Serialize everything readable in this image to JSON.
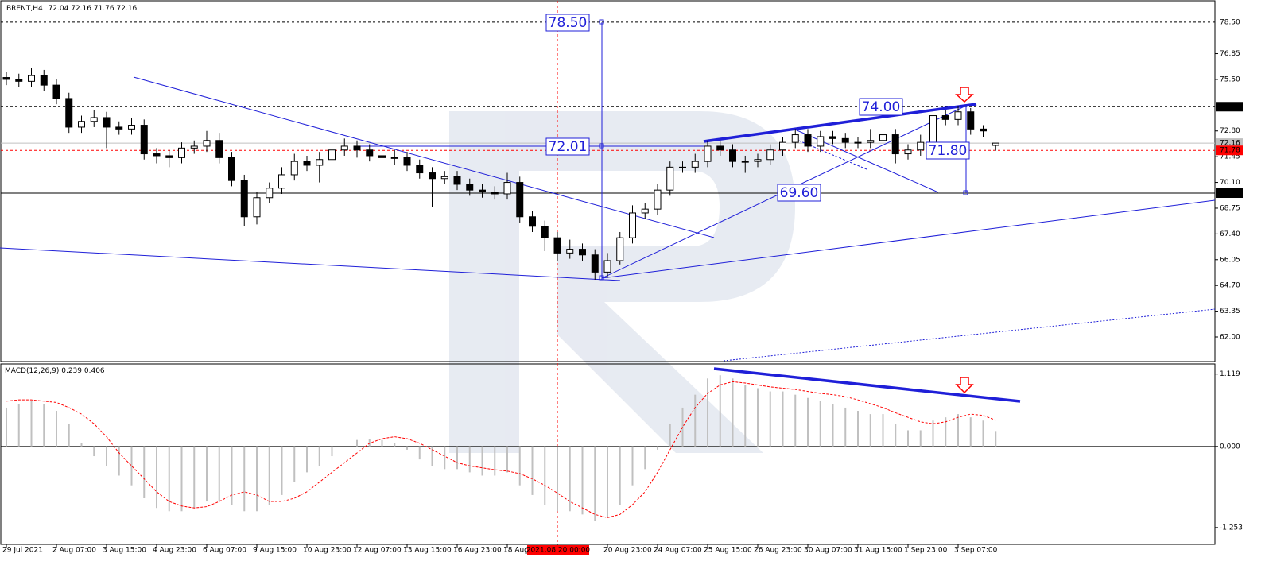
{
  "chart_data": [
    {
      "type": "candlestick",
      "title": "BRENT,H4",
      "categories": [
        "29 Jul 2021",
        null,
        null,
        null,
        "2 Aug 07:00",
        null,
        null,
        null,
        "3 Aug 15:00",
        null,
        null,
        null,
        "4 Aug 23:00",
        null,
        null,
        null,
        "6 Aug 07:00",
        null,
        null,
        null,
        "9 Aug 15:00",
        null,
        null,
        null,
        "10 Aug 23:00",
        null,
        null,
        null,
        "12 Aug 07:00",
        null,
        null,
        null,
        "13 Aug 15:00",
        null,
        null,
        null,
        "16 Aug 23:00",
        null,
        null,
        null,
        "18 Aug 07:00",
        null,
        null,
        null,
        "2021.08.20 00:00",
        null,
        null,
        null,
        "20 Aug 23:00",
        null,
        null,
        null,
        "24 Aug 07:00",
        null,
        null,
        null,
        "25 Aug 15:00",
        null,
        null,
        null,
        "26 Aug 23:00",
        null,
        null,
        null,
        "30 Aug 07:00",
        null,
        null,
        null,
        "31 Aug 15:00",
        null,
        null,
        null,
        "1 Sep 23:00",
        null,
        null,
        null,
        "3 Sep 07:00",
        null,
        null,
        null
      ],
      "open": [
        75.6,
        75.5,
        75.4,
        75.7,
        75.2,
        74.5,
        73.0,
        73.3,
        73.5,
        73.0,
        72.9,
        73.1,
        71.6,
        71.5,
        71.4,
        71.9,
        72.0,
        72.3,
        71.4,
        70.2,
        68.3,
        69.3,
        69.8,
        70.5,
        71.2,
        71.0,
        71.3,
        71.8,
        72.0,
        71.8,
        71.5,
        71.4,
        71.4,
        71.0,
        70.6,
        70.3,
        70.4,
        70.0,
        69.7,
        69.6,
        69.5,
        70.1,
        68.3,
        67.8,
        67.2,
        66.4,
        66.6,
        66.3,
        65.4,
        66.0,
        67.2,
        68.5,
        68.7,
        69.7,
        70.9,
        70.9,
        71.2,
        72.0,
        71.8,
        71.2,
        71.2,
        71.3,
        71.8,
        72.2,
        72.6,
        72.0,
        72.5,
        72.4,
        72.2,
        72.2,
        72.3,
        72.6,
        71.6,
        71.8,
        72.2,
        73.6,
        73.4,
        73.8,
        72.9,
        72.04
      ],
      "high": [
        75.9,
        75.8,
        76.1,
        76.0,
        75.5,
        74.8,
        73.6,
        73.9,
        73.8,
        73.3,
        73.5,
        73.4,
        71.9,
        71.8,
        72.2,
        72.3,
        72.8,
        72.7,
        71.7,
        70.5,
        69.6,
        70.1,
        70.9,
        71.6,
        71.5,
        71.7,
        72.2,
        72.4,
        72.3,
        72.1,
        71.8,
        71.8,
        71.7,
        71.3,
        70.9,
        70.7,
        70.7,
        70.3,
        70.0,
        69.9,
        70.6,
        70.4,
        68.6,
        68.1,
        67.5,
        67.1,
        66.9,
        66.6,
        66.4,
        67.5,
        68.9,
        69.0,
        70.0,
        71.2,
        71.2,
        71.6,
        72.3,
        72.3,
        72.1,
        71.5,
        71.6,
        72.1,
        72.5,
        72.9,
        72.9,
        72.8,
        72.8,
        72.7,
        72.5,
        72.9,
        72.9,
        72.9,
        72.1,
        72.6,
        73.9,
        73.9,
        74.1,
        74.0,
        73.1,
        72.16
      ],
      "low": [
        75.2,
        75.1,
        75.1,
        74.9,
        74.2,
        72.7,
        72.7,
        73.0,
        71.9,
        72.6,
        72.6,
        71.3,
        71.1,
        70.9,
        71.1,
        71.6,
        71.7,
        71.1,
        69.9,
        67.8,
        67.9,
        69.0,
        69.5,
        70.2,
        70.7,
        70.1,
        71.0,
        71.5,
        71.4,
        71.2,
        71.1,
        71.0,
        70.7,
        70.3,
        68.8,
        70.0,
        69.7,
        69.4,
        69.3,
        69.2,
        69.2,
        68.0,
        67.5,
        66.5,
        66.0,
        66.1,
        66.0,
        65.0,
        65.1,
        65.8,
        66.9,
        68.2,
        68.4,
        69.4,
        70.6,
        70.6,
        70.9,
        71.5,
        70.9,
        70.6,
        70.9,
        71.0,
        71.5,
        71.9,
        71.7,
        71.7,
        72.1,
        71.9,
        71.9,
        71.9,
        72.0,
        71.1,
        71.3,
        71.5,
        71.9,
        73.1,
        73.1,
        72.6,
        72.5,
        71.76
      ],
      "close": [
        75.5,
        75.4,
        75.7,
        75.2,
        74.5,
        73.0,
        73.3,
        73.5,
        73.0,
        72.9,
        73.1,
        71.6,
        71.5,
        71.4,
        71.9,
        72.0,
        72.3,
        71.4,
        70.2,
        68.3,
        69.3,
        69.8,
        70.5,
        71.2,
        71.0,
        71.3,
        71.8,
        72.0,
        71.8,
        71.5,
        71.4,
        71.4,
        71.0,
        70.6,
        70.3,
        70.4,
        70.0,
        69.7,
        69.6,
        69.5,
        70.1,
        68.3,
        67.8,
        67.2,
        66.4,
        66.6,
        66.3,
        65.4,
        66.0,
        67.2,
        68.5,
        68.7,
        69.7,
        70.9,
        70.9,
        71.2,
        72.0,
        71.8,
        71.2,
        71.2,
        71.3,
        71.8,
        72.2,
        72.6,
        72.0,
        72.5,
        72.4,
        72.2,
        72.2,
        72.3,
        72.6,
        71.6,
        71.8,
        72.2,
        73.6,
        73.4,
        73.8,
        72.9,
        72.8,
        72.16
      ],
      "up_color": "#ffffff",
      "down_color": "#000000",
      "outline_color": "#000000",
      "ylim": [
        60.75,
        79.08
      ],
      "yticks": [
        {
          "value": 76.85,
          "label": "76.85"
        },
        {
          "value": 75.5,
          "label": "75.50"
        },
        {
          "value": 72.8,
          "label": "72.80"
        },
        {
          "value": 71.45,
          "label": "71.45"
        },
        {
          "value": 70.1,
          "label": "70.10"
        },
        {
          "value": 68.75,
          "label": "68.75"
        },
        {
          "value": 67.4,
          "label": "67.40"
        },
        {
          "value": 66.05,
          "label": "66.05"
        },
        {
          "value": 64.7,
          "label": "64.70"
        },
        {
          "value": 63.35,
          "label": "63.35"
        },
        {
          "value": 62,
          "label": "62.00"
        }
      ],
      "hlines": [
        {
          "value": 78.5,
          "label": "78.50",
          "color": "#000000",
          "style": "dashed",
          "tag": "#ffffff",
          "text_color": "#000000"
        },
        {
          "value": 74.07,
          "label": "74.07",
          "color": "#000000",
          "style": "dashed",
          "tag": "#000000",
          "text_color": "#ffffff"
        },
        {
          "value": 72.16,
          "label": "72.16",
          "color": "#c0c0c0",
          "style": "solid",
          "tag": "#c0c0c0",
          "text_color": "#000000"
        },
        {
          "value": 71.78,
          "label": "71.78",
          "color": "#ff0000",
          "style": "dashed",
          "tag": "#ff0000",
          "text_color": "#ffffff"
        },
        {
          "value": 69.54,
          "label": "69.54",
          "color": "#000000",
          "style": "solid",
          "tag": "#000000",
          "text_color": "#ffffff"
        }
      ],
      "crosshair_index": 44,
      "crosshair_color": "#ff0000",
      "annotations": [
        "78.50",
        "72.01",
        "74.00",
        "71.80",
        "69.60"
      ]
    },
    {
      "type": "macd",
      "title": "MACD(12,26,9)",
      "histogram": [
        0.6,
        0.65,
        0.7,
        0.65,
        0.55,
        0.35,
        0.05,
        -0.15,
        -0.3,
        -0.45,
        -0.6,
        -0.8,
        -0.95,
        -1.0,
        -1.0,
        -0.95,
        -0.85,
        -0.85,
        -0.9,
        -1.0,
        -1.0,
        -0.9,
        -0.75,
        -0.55,
        -0.4,
        -0.3,
        -0.15,
        0.0,
        0.1,
        0.12,
        0.1,
        0.05,
        -0.05,
        -0.2,
        -0.3,
        -0.35,
        -0.35,
        -0.4,
        -0.45,
        -0.45,
        -0.4,
        -0.6,
        -0.75,
        -0.9,
        -1.0,
        -1.0,
        -1.05,
        -1.15,
        -1.1,
        -0.9,
        -0.6,
        -0.35,
        -0.05,
        0.35,
        0.6,
        0.8,
        1.05,
        1.1,
        1.05,
        0.95,
        0.9,
        0.85,
        0.85,
        0.8,
        0.75,
        0.7,
        0.65,
        0.6,
        0.55,
        0.5,
        0.5,
        0.35,
        0.25,
        0.25,
        0.4,
        0.45,
        0.5,
        0.45,
        0.4,
        0.239
      ],
      "signal": [
        0.7,
        0.72,
        0.72,
        0.7,
        0.68,
        0.6,
        0.5,
        0.35,
        0.15,
        -0.1,
        -0.3,
        -0.5,
        -0.7,
        -0.85,
        -0.92,
        -0.95,
        -0.93,
        -0.85,
        -0.75,
        -0.7,
        -0.75,
        -0.85,
        -0.85,
        -0.8,
        -0.7,
        -0.55,
        -0.4,
        -0.25,
        -0.1,
        0.05,
        0.12,
        0.15,
        0.12,
        0.05,
        -0.05,
        -0.15,
        -0.25,
        -0.3,
        -0.33,
        -0.36,
        -0.38,
        -0.42,
        -0.5,
        -0.6,
        -0.72,
        -0.85,
        -0.95,
        -1.05,
        -1.1,
        -1.05,
        -0.9,
        -0.7,
        -0.4,
        -0.05,
        0.3,
        0.6,
        0.82,
        0.95,
        1.0,
        0.98,
        0.95,
        0.92,
        0.9,
        0.88,
        0.85,
        0.82,
        0.8,
        0.77,
        0.72,
        0.66,
        0.6,
        0.52,
        0.45,
        0.38,
        0.35,
        0.38,
        0.45,
        0.5,
        0.48,
        0.406
      ],
      "histogram_color": "#c0c0c0",
      "signal_color": "#ff0000",
      "ylim": [
        -1.5,
        1.25
      ],
      "yticks": [
        1.119,
        {
          "value": 0,
          "label": "0.000"
        },
        -1.253
      ]
    }
  ]
}
